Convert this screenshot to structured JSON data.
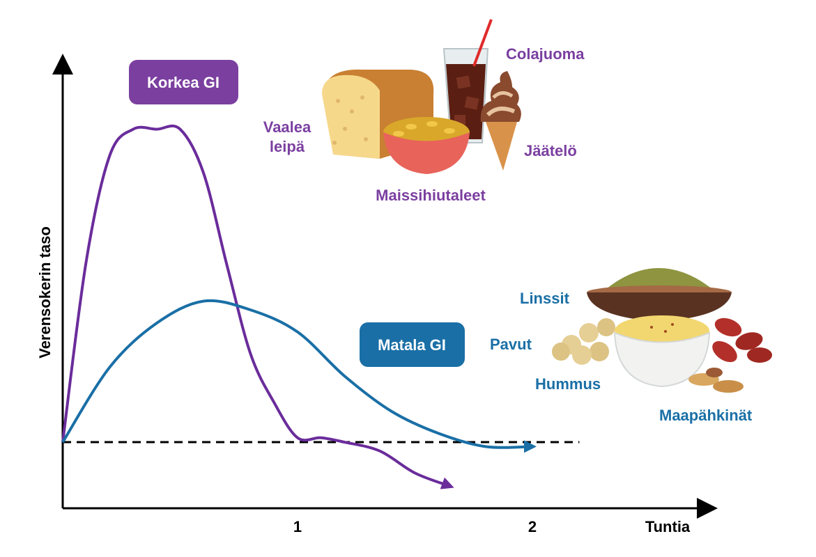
{
  "chart_data": {
    "type": "line",
    "xlabel": "Tuntia",
    "ylabel": "Verensokerin taso",
    "x_ticks": [
      "1",
      "2"
    ],
    "xlim": [
      0,
      2.7
    ],
    "ylim": [
      0,
      10
    ],
    "baseline_y": 1.5,
    "series": [
      {
        "name": "Korkea GI",
        "color": "#6a2c9b",
        "x": [
          0,
          0.1,
          0.2,
          0.3,
          0.4,
          0.5,
          0.6,
          0.7,
          0.8,
          0.9,
          1.0,
          1.1,
          1.2,
          1.35,
          1.5,
          1.65
        ],
        "y": [
          1.5,
          5.6,
          8.0,
          8.6,
          8.6,
          8.6,
          7.6,
          5.5,
          3.5,
          2.4,
          1.6,
          1.6,
          1.5,
          1.3,
          0.8,
          0.5
        ]
      },
      {
        "name": "Matala GI",
        "color": "#1a6fa6",
        "x": [
          0,
          0.2,
          0.4,
          0.6,
          0.8,
          1.0,
          1.2,
          1.4,
          1.6,
          1.8,
          2.0
        ],
        "y": [
          1.5,
          3.2,
          4.2,
          4.7,
          4.5,
          4.0,
          3.0,
          2.2,
          1.7,
          1.4,
          1.4
        ]
      }
    ],
    "badges": {
      "high": "Korkea GI",
      "low": "Matala GI"
    },
    "high_gi_foods": [
      "Colajuoma",
      "Vaalea",
      "leipä",
      "Jäätelö",
      "Maissihiutaleet"
    ],
    "low_gi_foods": [
      "Linssit",
      "Pavut",
      "Hummus",
      "Maapähkinät"
    ],
    "colors": {
      "high": "#6a2c9b",
      "high_badge": "#7b3fa0",
      "low": "#1a6fa6",
      "low_badge": "#1a6fa6",
      "axis": "#000000"
    }
  }
}
